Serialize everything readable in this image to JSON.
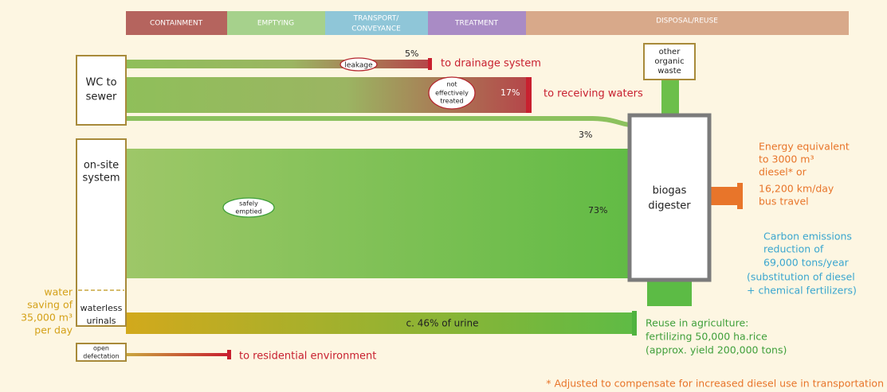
{
  "stages": [
    [
      "CONTAINMENT"
    ],
    [
      "EMPTYING"
    ],
    [
      "TRANSPORT/",
      "CONVEYANCE"
    ],
    [
      "TREATMENT"
    ],
    [
      "DISPOSAL/REUSE"
    ]
  ],
  "sources": {
    "wc_to_sewer": [
      "WC to",
      "sewer"
    ],
    "on_site": [
      "on-site",
      "system"
    ],
    "urinals": [
      "waterless",
      "urinals"
    ],
    "open_defecation": [
      "open",
      "defectation"
    ]
  },
  "flows": {
    "leakage": {
      "label": "leakage",
      "percent": "5%",
      "destination": "to drainage system"
    },
    "untreated": {
      "label": [
        "not",
        "effectively",
        "treated"
      ],
      "percent": "17%",
      "destination": "to receiving waters"
    },
    "sewer_to_digester": {
      "percent": "3%"
    },
    "onsite": {
      "label": [
        "safely",
        "emptied"
      ],
      "percent": "73%"
    },
    "urine": {
      "label": "c. 46% of urine"
    },
    "open_defecation": {
      "destination": "to residential environment"
    }
  },
  "digester": [
    "biogas",
    "digester"
  ],
  "other_waste": [
    "other",
    "organic",
    "waste"
  ],
  "energy": [
    "Energy equivalent",
    "to 3000 m³",
    "diesel* or",
    "16,200 km/day",
    "bus travel"
  ],
  "carbon": [
    "Carbon emissions",
    "reduction of",
    "69,000 tons/year",
    "(substitution of diesel",
    "+ chemical fertilizers)"
  ],
  "reuse": [
    "Reuse in agriculture:",
    "fertilizing 50,000 ha.rice",
    "(approx. yield 200,000 tons)"
  ],
  "water_saving": [
    "water",
    "saving of",
    "35,000 m³",
    "per day"
  ],
  "footnote": "* Adjusted to compensate for increased diesel use in transportation"
}
